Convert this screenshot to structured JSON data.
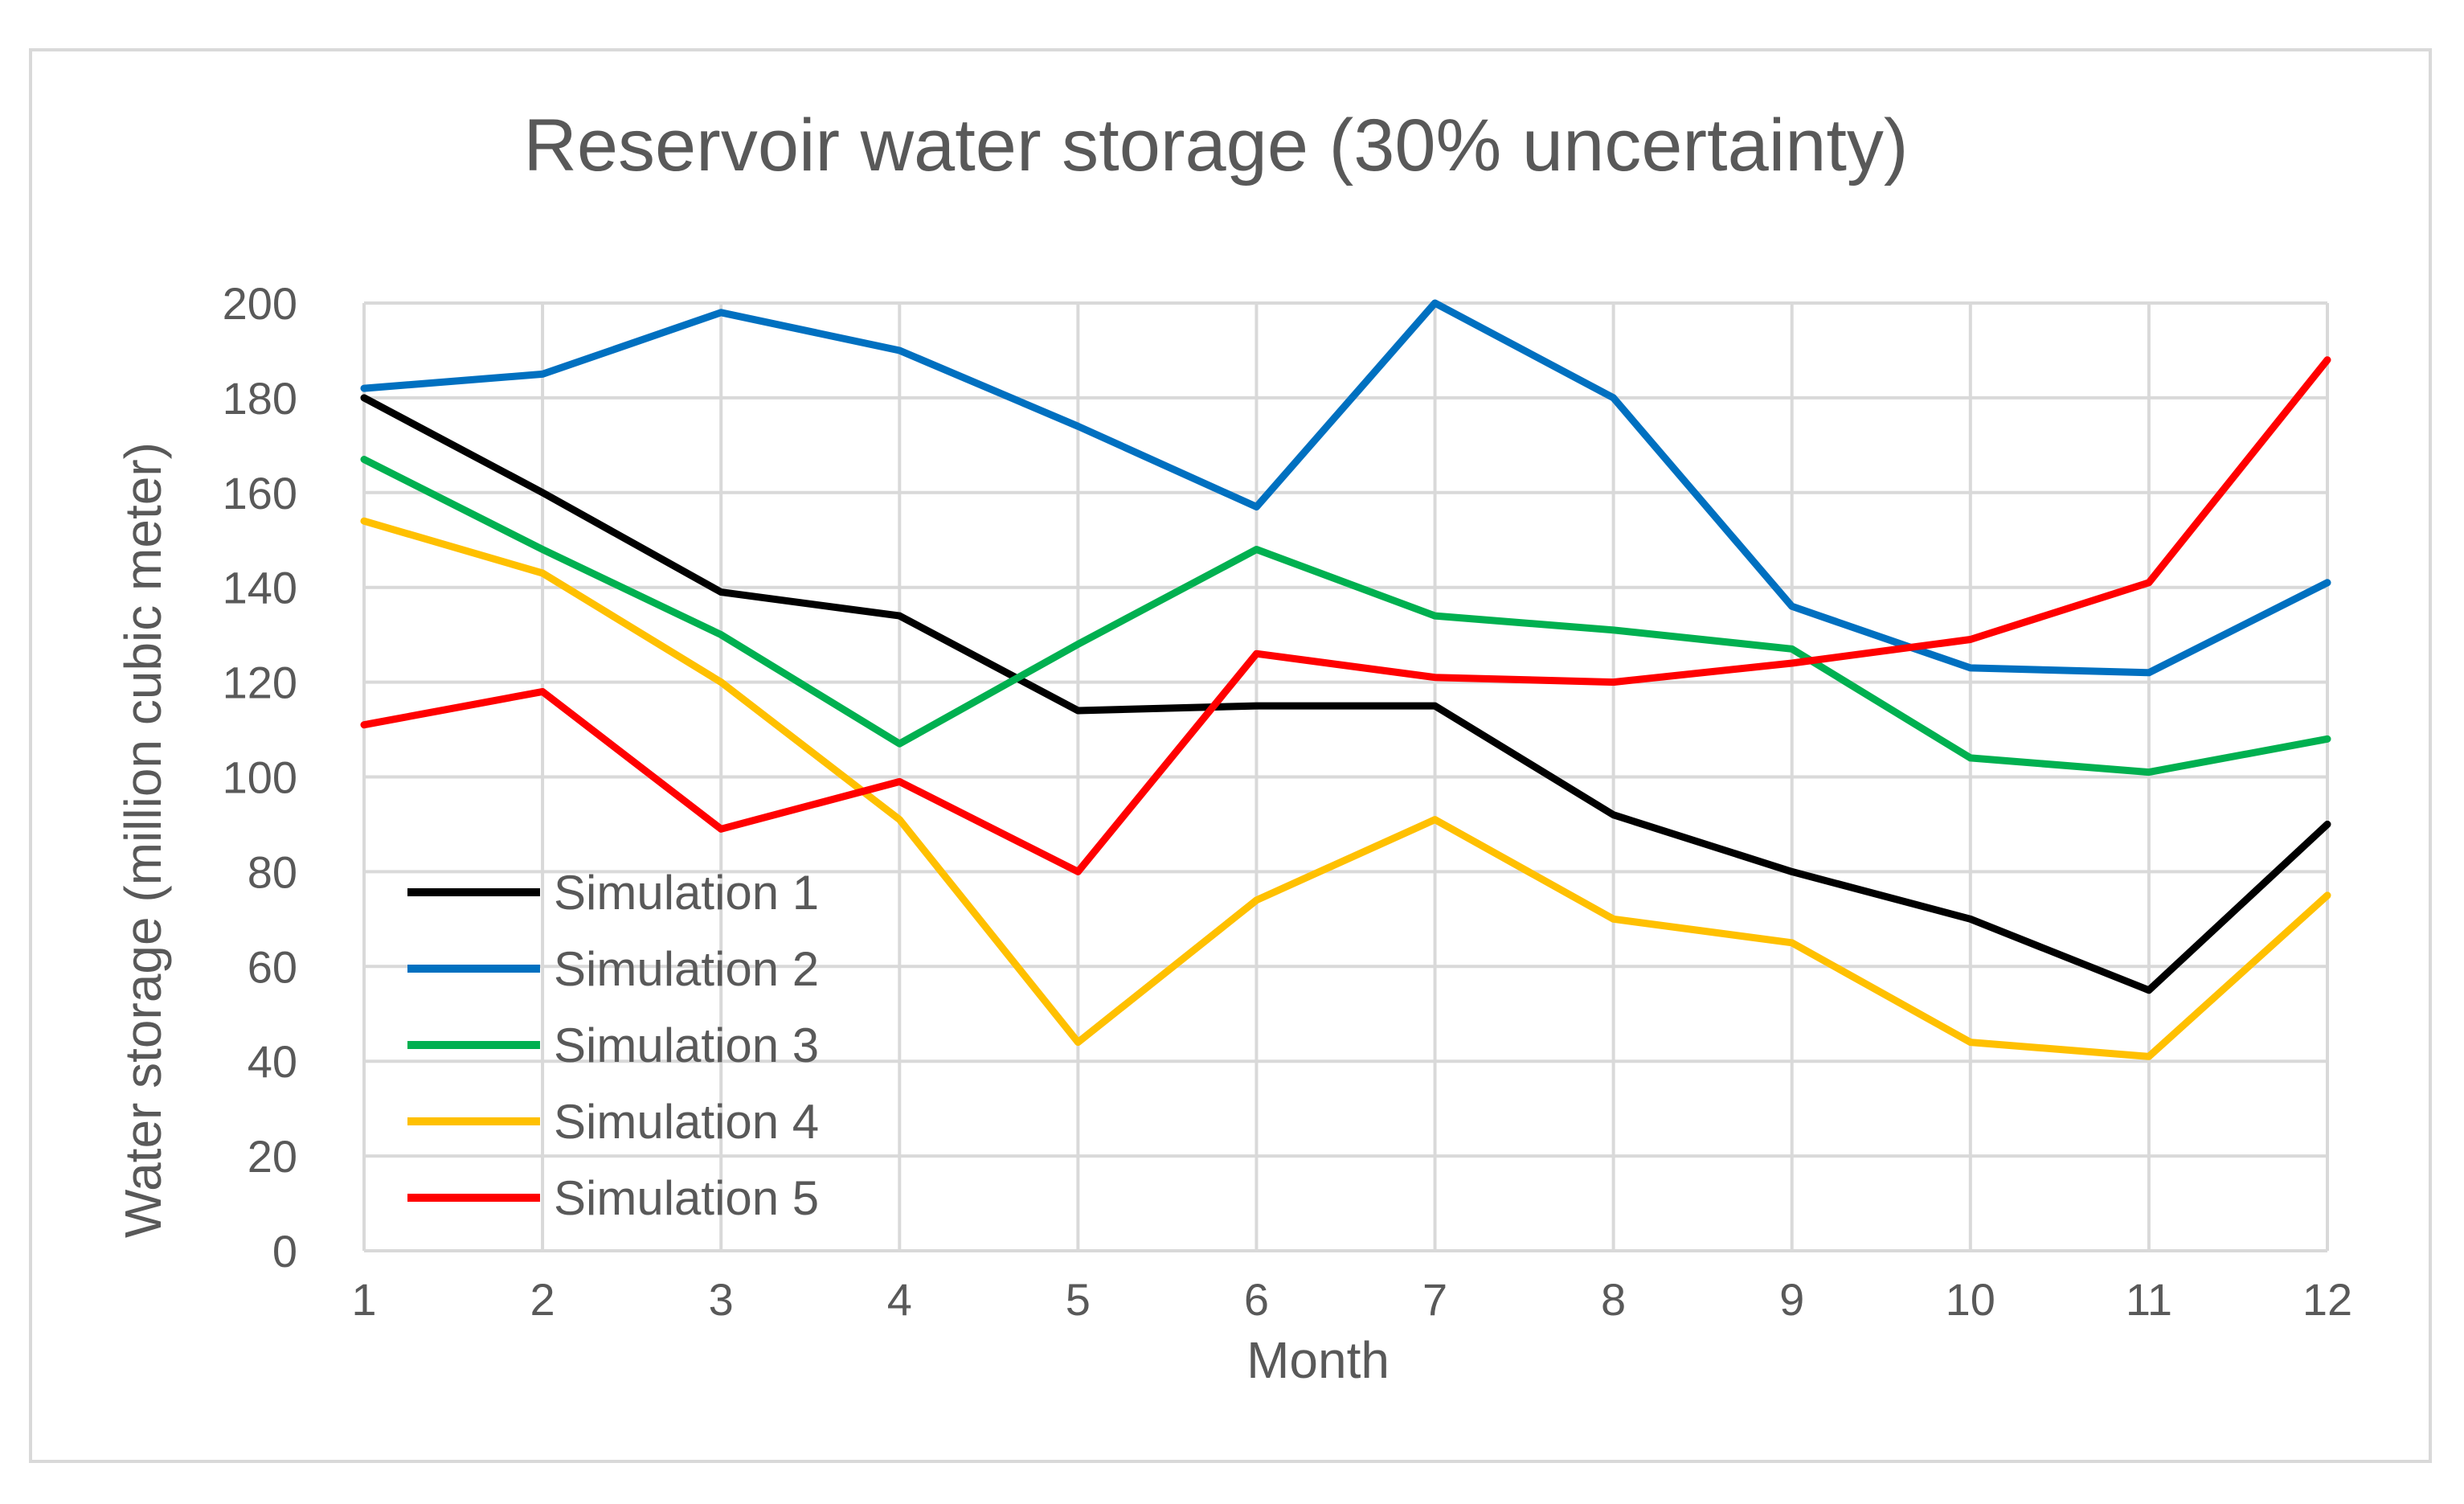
{
  "chart_data": {
    "type": "line",
    "title": "Reservoir  water storage (30% uncertainty)",
    "xlabel": "Month",
    "ylabel": "Water storage (million cubic meter)",
    "categories": [
      "1",
      "2",
      "3",
      "4",
      "5",
      "6",
      "7",
      "8",
      "9",
      "10",
      "11",
      "12"
    ],
    "yticks": [
      "0",
      "20",
      "40",
      "60",
      "80",
      "100",
      "120",
      "140",
      "160",
      "180",
      "200"
    ],
    "ylim": [
      0,
      200
    ],
    "grid": true,
    "legend_position": "bottom-left",
    "series": [
      {
        "name": "Simulation 1",
        "color": "#000000",
        "values": [
          180,
          160,
          139,
          134,
          114,
          115,
          115,
          92,
          80,
          70,
          55,
          90
        ]
      },
      {
        "name": "Simulation 2",
        "color": "#0070C0",
        "values": [
          182,
          185,
          198,
          190,
          174,
          157,
          200,
          180,
          136,
          123,
          122,
          141
        ]
      },
      {
        "name": "Simulation 3",
        "color": "#00B050",
        "values": [
          167,
          148,
          130,
          107,
          128,
          148,
          134,
          131,
          127,
          104,
          101,
          108
        ]
      },
      {
        "name": "Simulation 4",
        "color": "#FFC000",
        "values": [
          154,
          143,
          120,
          91,
          44,
          74,
          91,
          70,
          65,
          44,
          41,
          75
        ]
      },
      {
        "name": "Simulation 5",
        "color": "#FF0000",
        "values": [
          111,
          118,
          89,
          99,
          80,
          126,
          121,
          120,
          124,
          129,
          141,
          188
        ]
      }
    ]
  }
}
